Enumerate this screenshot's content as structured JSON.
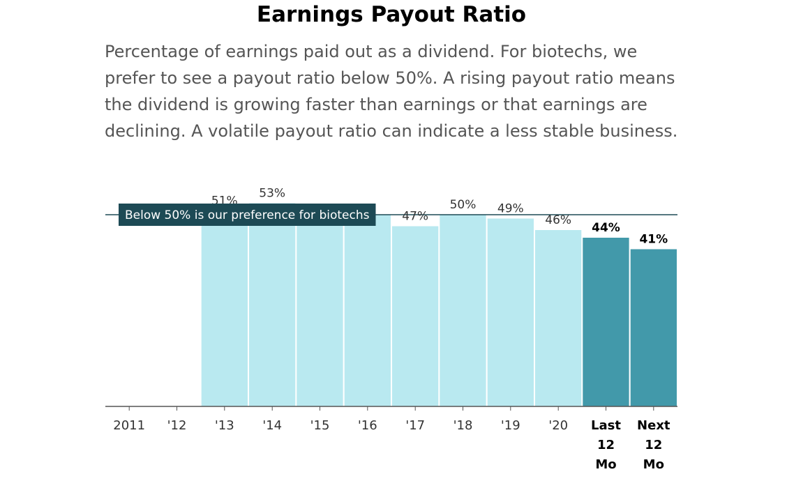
{
  "title": "Earnings Payout Ratio",
  "description": "Percentage of earnings paid out as a dividend. For biotechs, we prefer to see a payout ratio below 50%. A rising payout ratio means the dividend is growing faster than earnings or that earnings are declining. A volatile payout ratio can indicate a less stable business.",
  "chart_data": {
    "type": "bar",
    "categories": [
      "2011",
      "'12",
      "'13",
      "'14",
      "'15",
      "'16",
      "'17",
      "'18",
      "'19",
      "'20",
      "Last 12 Mo",
      "Next 12 Mo"
    ],
    "values": [
      null,
      null,
      51,
      53,
      50,
      50,
      47,
      50,
      49,
      46,
      44,
      41
    ],
    "value_labels": [
      "",
      "",
      "51%",
      "53%",
      "",
      "",
      "47%",
      "50%",
      "49%",
      "46%",
      "44%",
      "41%"
    ],
    "highlighted_categories": [
      "Last 12 Mo",
      "Next 12 Mo"
    ],
    "ylim": [
      0,
      100
    ],
    "reference_line": {
      "value": 50,
      "label": "Below 50% is our preference for biotechs"
    },
    "colors": {
      "bar": "#b9e9f0",
      "bar_highlight": "#4299aa",
      "reference_line": "#1d4a55",
      "reference_label_bg": "#1d4a55",
      "axis": "#555555"
    }
  }
}
